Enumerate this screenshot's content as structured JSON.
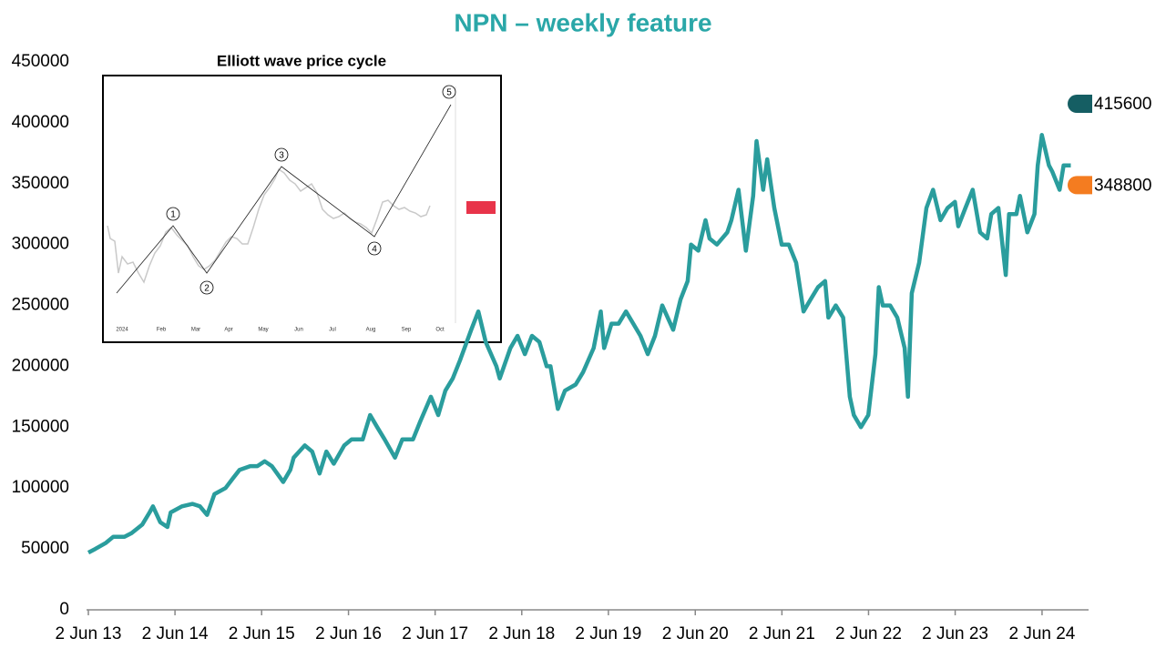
{
  "chart_data": {
    "type": "line",
    "title": "NPN – weekly feature",
    "x": [
      "2013-06-02",
      "2013-07-01",
      "2013-08-15",
      "2013-09-15",
      "2013-11-01",
      "2013-12-01",
      "2014-01-15",
      "2014-02-15",
      "2014-03-01",
      "2014-04-01",
      "2014-05-01",
      "2014-05-15",
      "2014-07-01",
      "2014-08-15",
      "2014-09-15",
      "2014-10-15",
      "2014-11-15",
      "2015-01-01",
      "2015-02-01",
      "2015-03-01",
      "2015-04-15",
      "2015-05-15",
      "2015-06-15",
      "2015-07-15",
      "2015-09-01",
      "2015-10-01",
      "2015-10-15",
      "2015-12-01",
      "2016-01-01",
      "2016-02-01",
      "2016-03-01",
      "2016-04-01",
      "2016-05-15",
      "2016-06-15",
      "2016-08-01",
      "2016-09-01",
      "2016-10-01",
      "2016-11-01",
      "2016-12-15",
      "2017-01-15",
      "2017-03-01",
      "2017-04-01",
      "2017-05-15",
      "2017-06-15",
      "2017-07-15",
      "2017-08-15",
      "2017-09-15",
      "2017-11-01",
      "2017-12-01",
      "2018-01-01",
      "2018-02-15",
      "2018-03-01",
      "2018-04-15",
      "2018-05-15",
      "2018-06-15",
      "2018-07-15",
      "2018-08-15",
      "2018-09-15",
      "2018-10-01",
      "2018-11-01",
      "2018-12-01",
      "2019-01-15",
      "2019-02-15",
      "2019-04-01",
      "2019-05-01",
      "2019-05-15",
      "2019-06-15",
      "2019-07-15",
      "2019-08-15",
      "2019-09-15",
      "2019-10-15",
      "2019-11-15",
      "2019-12-15",
      "2020-01-15",
      "2020-03-01",
      "2020-04-01",
      "2020-05-01",
      "2020-05-15",
      "2020-06-15",
      "2020-07-15",
      "2020-08-01",
      "2020-09-01",
      "2020-10-15",
      "2020-11-01",
      "2020-12-01",
      "2021-01-01",
      "2021-02-01",
      "2021-02-15",
      "2021-03-15",
      "2021-04-01",
      "2021-05-01",
      "2021-06-01",
      "2021-07-01",
      "2021-08-01",
      "2021-09-01",
      "2021-10-01",
      "2021-11-01",
      "2021-12-01",
      "2021-12-15",
      "2022-01-15",
      "2022-02-15",
      "2022-03-15",
      "2022-04-01",
      "2022-05-01",
      "2022-06-01",
      "2022-07-01",
      "2022-07-15",
      "2022-08-01",
      "2022-09-01",
      "2022-10-01",
      "2022-11-01",
      "2022-11-15",
      "2022-12-01",
      "2023-01-01",
      "2023-02-01",
      "2023-03-01",
      "2023-04-01",
      "2023-05-01",
      "2023-06-01",
      "2023-06-15",
      "2023-07-15",
      "2023-08-15",
      "2023-09-15",
      "2023-10-15",
      "2023-11-01",
      "2023-12-01",
      "2024-01-01",
      "2024-01-15",
      "2024-02-15",
      "2024-03-01",
      "2024-04-01",
      "2024-05-01",
      "2024-05-15",
      "2024-06-01",
      "2024-07-01",
      "2024-07-15",
      "2024-08-15",
      "2024-09-01",
      "2024-10-01"
    ],
    "series": [
      {
        "color": "#2a9d9d",
        "values": [
          47000,
          50000,
          55000,
          60000,
          60000,
          63000,
          70000,
          80000,
          85000,
          72000,
          68000,
          80000,
          85000,
          87000,
          85000,
          78000,
          95000,
          100000,
          108000,
          115000,
          118000,
          118000,
          122000,
          118000,
          105000,
          115000,
          125000,
          135000,
          130000,
          112000,
          130000,
          120000,
          135000,
          140000,
          140000,
          160000,
          150000,
          140000,
          125000,
          140000,
          140000,
          155000,
          175000,
          160000,
          180000,
          190000,
          205000,
          230000,
          245000,
          220000,
          200000,
          190000,
          215000,
          225000,
          210000,
          225000,
          220000,
          200000,
          200000,
          165000,
          180000,
          185000,
          195000,
          215000,
          245000,
          215000,
          235000,
          235000,
          245000,
          235000,
          225000,
          210000,
          225000,
          250000,
          230000,
          255000,
          270000,
          300000,
          295000,
          320000,
          305000,
          300000,
          310000,
          320000,
          345000,
          295000,
          340000,
          385000,
          345000,
          370000,
          330000,
          300000,
          300000,
          285000,
          245000,
          255000,
          265000,
          270000,
          240000,
          250000,
          240000,
          175000,
          160000,
          150000,
          160000,
          210000,
          265000,
          250000,
          250000,
          240000,
          215000,
          175000,
          260000,
          285000,
          330000,
          345000,
          320000,
          330000,
          335000,
          315000,
          330000,
          345000,
          310000,
          305000,
          325000,
          330000,
          275000,
          325000,
          325000,
          340000,
          310000,
          325000,
          365000,
          390000,
          365000,
          360000,
          345000,
          365000,
          365000
        ]
      }
    ],
    "xlim": [
      "2013-06-02",
      "2024-12-15"
    ],
    "xticks": [
      {
        "value": "2013-06-02",
        "label": "2 Jun 13"
      },
      {
        "value": "2014-06-02",
        "label": "2 Jun 14"
      },
      {
        "value": "2015-06-02",
        "label": "2 Jun 15"
      },
      {
        "value": "2016-06-02",
        "label": "2 Jun 16"
      },
      {
        "value": "2017-06-02",
        "label": "2 Jun 17"
      },
      {
        "value": "2018-06-02",
        "label": "2 Jun 18"
      },
      {
        "value": "2019-06-02",
        "label": "2 Jun 19"
      },
      {
        "value": "2020-06-02",
        "label": "2 Jun 20"
      },
      {
        "value": "2021-06-02",
        "label": "2 Jun 21"
      },
      {
        "value": "2022-06-02",
        "label": "2 Jun 22"
      },
      {
        "value": "2023-06-02",
        "label": "2 Jun 23"
      },
      {
        "value": "2024-06-02",
        "label": "2 Jun 24"
      }
    ],
    "ylim": [
      0,
      450000
    ],
    "yticks": [
      0,
      50000,
      100000,
      150000,
      200000,
      250000,
      300000,
      350000,
      400000,
      450000
    ],
    "grid": false,
    "markers": [
      {
        "value": 415600,
        "color": "#155e63"
      },
      {
        "value": 348800,
        "color": "#f47c20"
      }
    ],
    "inset": {
      "title": "Elliott wave price cycle",
      "waves": [
        "1",
        "2",
        "3",
        "4",
        "5"
      ],
      "months": [
        "2024",
        "Feb",
        "Mar",
        "Apr",
        "May",
        "Jun",
        "Jul",
        "Aug",
        "Sep",
        "Oct"
      ]
    }
  }
}
